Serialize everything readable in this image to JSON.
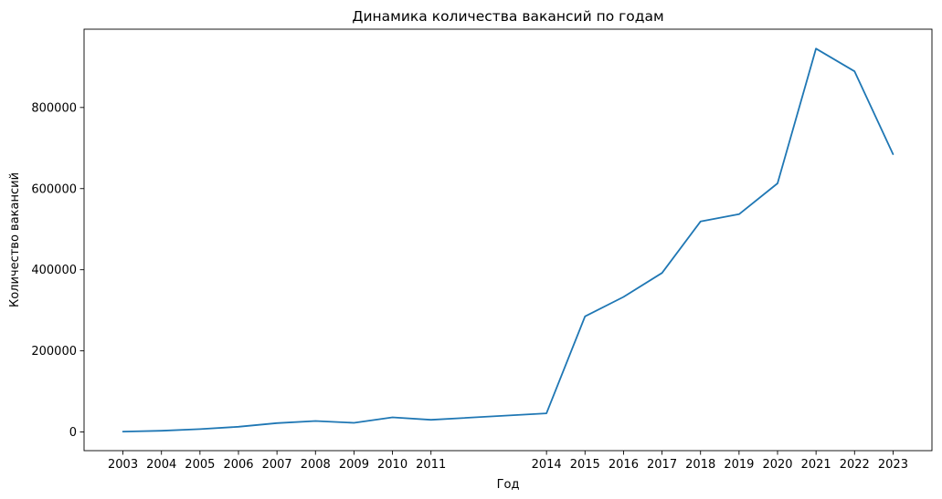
{
  "chart_data": {
    "type": "line",
    "title": "Динамика количества вакансий по годам",
    "xlabel": "Год",
    "ylabel": "Количество вакансий",
    "x": [
      2003,
      2004,
      2005,
      2006,
      2007,
      2008,
      2009,
      2010,
      2011,
      2014,
      2015,
      2016,
      2017,
      2018,
      2019,
      2020,
      2021,
      2022,
      2023
    ],
    "series": [
      {
        "values": [
          1000,
          3000,
          7000,
          13000,
          22000,
          27000,
          22500,
          36000,
          30000,
          46000,
          285000,
          333000,
          392000,
          519000,
          537000,
          613000,
          945000,
          889000,
          685000
        ],
        "color": "#1f77b4"
      }
    ],
    "xlim": [
      2001.99,
      2024.01
    ],
    "ylim": [
      -46000,
      993000
    ],
    "yticks": [
      0,
      200000,
      400000,
      600000,
      800000
    ],
    "ytick_labels": [
      "0",
      "200000",
      "400000",
      "600000",
      "800000"
    ],
    "xtick_labels": [
      "2003",
      "2004",
      "2005",
      "2006",
      "2007",
      "2008",
      "2009",
      "2010",
      "2011",
      "2014",
      "2015",
      "2016",
      "2017",
      "2018",
      "2019",
      "2020",
      "2021",
      "2022",
      "2023"
    ],
    "grid": false,
    "legend": "none"
  }
}
